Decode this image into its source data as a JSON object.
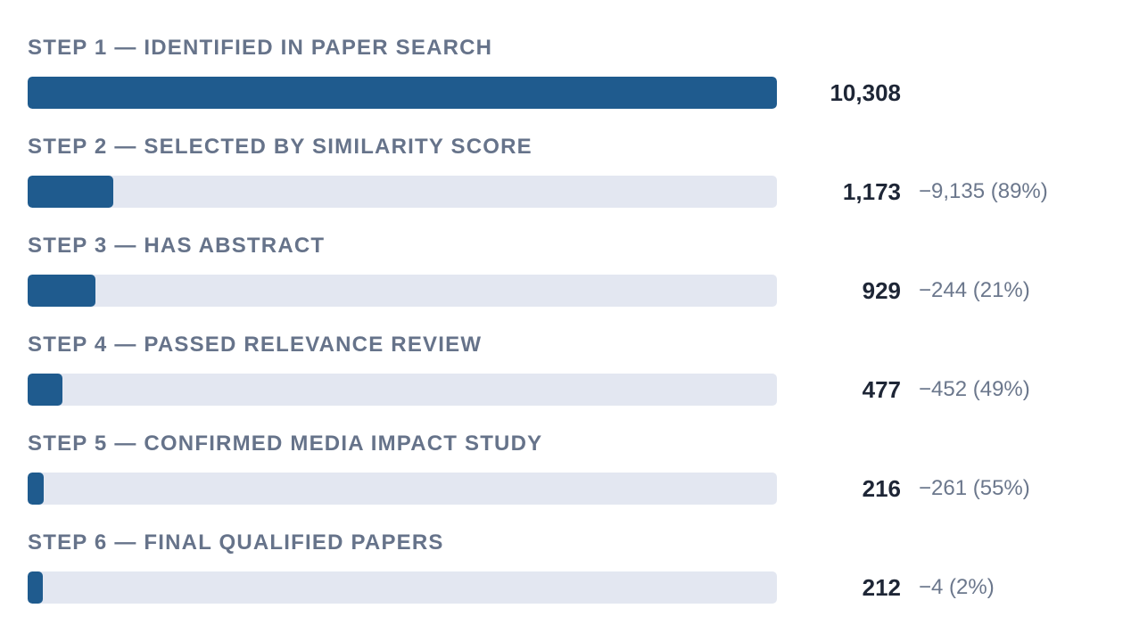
{
  "chart_data": {
    "type": "bar",
    "orientation": "horizontal",
    "colors": {
      "bar_fill": "#1f5b8e",
      "bar_track": "#e3e7f1",
      "label": "#66738a",
      "count": "#1e2636",
      "delta": "#6b778c"
    },
    "max_value": 10308,
    "steps": [
      {
        "label": "STEP 1 — IDENTIFIED IN PAPER SEARCH",
        "value": 10308,
        "count_text": "10,308",
        "delta_text": ""
      },
      {
        "label": "STEP 2 — SELECTED BY SIMILARITY SCORE",
        "value": 1173,
        "count_text": "1,173",
        "delta_text": "−9,135 (89%)"
      },
      {
        "label": "STEP 3 — HAS ABSTRACT",
        "value": 929,
        "count_text": "929",
        "delta_text": "−244 (21%)"
      },
      {
        "label": "STEP 4 — PASSED RELEVANCE REVIEW",
        "value": 477,
        "count_text": "477",
        "delta_text": "−452 (49%)"
      },
      {
        "label": "STEP 5 — CONFIRMED MEDIA IMPACT STUDY",
        "value": 216,
        "count_text": "216",
        "delta_text": "−261 (55%)"
      },
      {
        "label": "STEP 6 — FINAL QUALIFIED PAPERS",
        "value": 212,
        "count_text": "212",
        "delta_text": "−4 (2%)"
      }
    ]
  }
}
